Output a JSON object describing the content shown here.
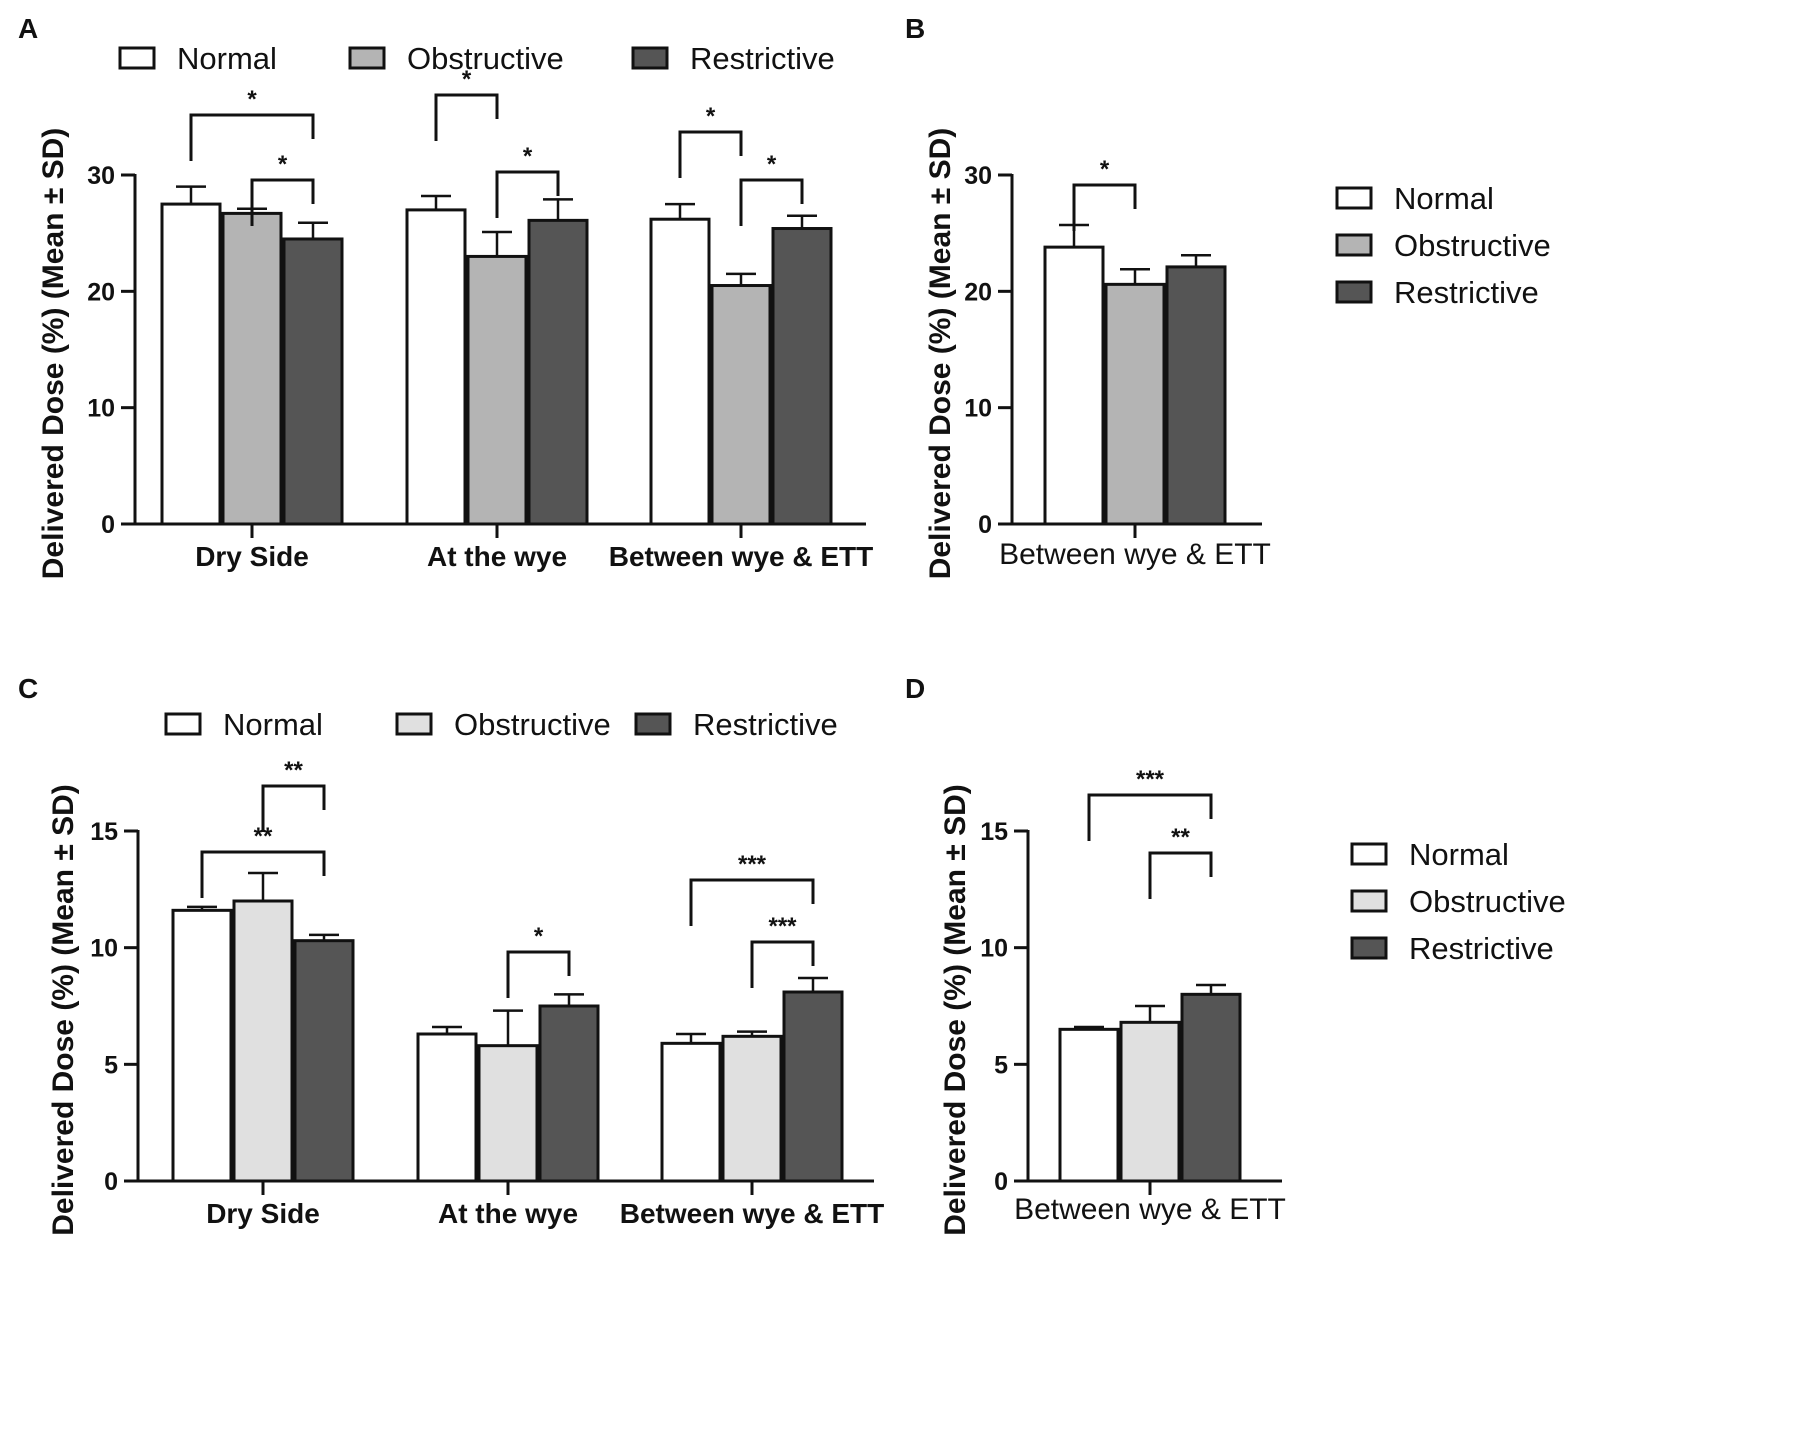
{
  "chart_data": [
    {
      "panel": "A",
      "type": "bar",
      "ylabel": "Delivered Dose (%) (Mean ± SD)",
      "ylim": [
        0,
        30
      ],
      "yticks": [
        0,
        10,
        20,
        30
      ],
      "categories": [
        "Dry Side",
        "At the wye",
        "Between wye & ETT"
      ],
      "category_label_style": "bold",
      "legend_position": "top",
      "series": [
        {
          "name": "Normal",
          "color": "#ffffff",
          "values": [
            27.5,
            27.0,
            26.2
          ],
          "errors": [
            1.5,
            1.2,
            1.3
          ]
        },
        {
          "name": "Obstructive",
          "color": "#b4b4b4",
          "values": [
            26.7,
            23.0,
            20.5
          ],
          "errors": [
            0.4,
            2.1,
            1.0
          ]
        },
        {
          "name": "Restrictive",
          "color": "#555555",
          "values": [
            24.5,
            26.1,
            25.4
          ],
          "errors": [
            1.4,
            1.8,
            1.1
          ]
        }
      ],
      "significance": [
        {
          "category": 0,
          "from": 0,
          "to": 2,
          "label": "*"
        },
        {
          "category": 0,
          "from": 1,
          "to": 2,
          "label": "*"
        },
        {
          "category": 1,
          "from": 0,
          "to": 1,
          "label": "*"
        },
        {
          "category": 1,
          "from": 1,
          "to": 2,
          "label": "*"
        },
        {
          "category": 2,
          "from": 0,
          "to": 1,
          "label": "*"
        },
        {
          "category": 2,
          "from": 1,
          "to": 2,
          "label": "*"
        }
      ]
    },
    {
      "panel": "B",
      "type": "bar",
      "ylabel": "Delivered Dose (%) (Mean ± SD)",
      "ylim": [
        0,
        30
      ],
      "yticks": [
        0,
        10,
        20,
        30
      ],
      "categories": [
        "Between wye & ETT"
      ],
      "category_label_style": "plain",
      "legend_position": "right",
      "series": [
        {
          "name": "Normal",
          "color": "#ffffff",
          "values": [
            23.8
          ],
          "errors": [
            1.9
          ]
        },
        {
          "name": "Obstructive",
          "color": "#b4b4b4",
          "values": [
            20.6
          ],
          "errors": [
            1.3
          ]
        },
        {
          "name": "Restrictive",
          "color": "#555555",
          "values": [
            22.1
          ],
          "errors": [
            1.0
          ]
        }
      ],
      "significance": [
        {
          "category": 0,
          "from": 0,
          "to": 1,
          "label": "*"
        }
      ]
    },
    {
      "panel": "C",
      "type": "bar",
      "ylabel": "Delivered Dose (%) (Mean ± SD)",
      "ylim": [
        0,
        15
      ],
      "yticks": [
        0,
        5,
        10,
        15
      ],
      "categories": [
        "Dry Side",
        "At the wye",
        "Between wye & ETT"
      ],
      "category_label_style": "bold",
      "legend_position": "top",
      "series": [
        {
          "name": "Normal",
          "color": "#ffffff",
          "values": [
            11.6,
            6.3,
            5.9
          ],
          "errors": [
            0.15,
            0.3,
            0.4
          ]
        },
        {
          "name": "Obstructive",
          "color": "#e0e0e0",
          "values": [
            12.0,
            5.8,
            6.2
          ],
          "errors": [
            1.2,
            1.5,
            0.2
          ]
        },
        {
          "name": "Restrictive",
          "color": "#555555",
          "values": [
            10.3,
            7.5,
            8.1
          ],
          "errors": [
            0.25,
            0.5,
            0.6
          ]
        }
      ],
      "significance": [
        {
          "category": 0,
          "from": 0,
          "to": 2,
          "label": "**"
        },
        {
          "category": 0,
          "from": 1,
          "to": 2,
          "label": "**"
        },
        {
          "category": 1,
          "from": 1,
          "to": 2,
          "label": "*"
        },
        {
          "category": 2,
          "from": 0,
          "to": 2,
          "label": "***"
        },
        {
          "category": 2,
          "from": 1,
          "to": 2,
          "label": "***"
        }
      ]
    },
    {
      "panel": "D",
      "type": "bar",
      "ylabel": "Delivered Dose (%) (Mean ± SD)",
      "ylim": [
        0,
        15
      ],
      "yticks": [
        0,
        5,
        10,
        15
      ],
      "categories": [
        "Between wye & ETT"
      ],
      "category_label_style": "plain",
      "legend_position": "right",
      "series": [
        {
          "name": "Normal",
          "color": "#ffffff",
          "values": [
            6.5
          ],
          "errors": [
            0.1
          ]
        },
        {
          "name": "Obstructive",
          "color": "#e0e0e0",
          "values": [
            6.8
          ],
          "errors": [
            0.7
          ]
        },
        {
          "name": "Restrictive",
          "color": "#555555",
          "values": [
            8.0
          ],
          "errors": [
            0.4
          ]
        }
      ],
      "significance": [
        {
          "category": 0,
          "from": 0,
          "to": 2,
          "label": "***"
        },
        {
          "category": 0,
          "from": 1,
          "to": 2,
          "label": "**"
        }
      ]
    }
  ]
}
